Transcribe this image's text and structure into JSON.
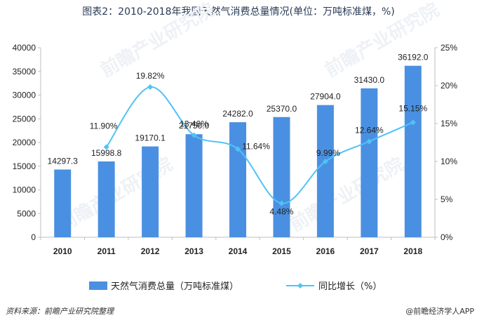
{
  "title": "图表2：2010-2018年我国天然气消费总量情况(单位：万吨标准煤，%)",
  "watermark": "前瞻产业研究院",
  "source": "资料来源：前瞻产业研究院整理",
  "brand": "@前瞻经济学人APP",
  "colors": {
    "bar": "#4a90e2",
    "line": "#4fc3f7",
    "axis": "#bfbfbf"
  },
  "chart_data": {
    "type": "bar",
    "categories": [
      "2010",
      "2011",
      "2012",
      "2013",
      "2014",
      "2015",
      "2016",
      "2017",
      "2018"
    ],
    "series": [
      {
        "name": "天然气消费总量（万吨标准煤）",
        "type": "bar",
        "axis": "left",
        "values": [
          14297.3,
          15998.8,
          19170.1,
          21750.0,
          24282.0,
          25370.0,
          27904.0,
          31430.0,
          36192.0
        ],
        "labels": [
          "14297.3",
          "15998.8",
          "19170.1",
          "21750.0",
          "24282.0",
          "25370.0",
          "27904.0",
          "31430.0",
          "36192.0"
        ]
      },
      {
        "name": "同比增长（%）",
        "type": "line",
        "axis": "right",
        "values": [
          null,
          11.9,
          19.82,
          13.46,
          11.64,
          4.48,
          9.99,
          12.64,
          15.15
        ],
        "labels": [
          "",
          "11.90%",
          "19.82%",
          "13.46%",
          "11.64%",
          "4.48%",
          "9.99%",
          "12.64%",
          "15.15%"
        ]
      }
    ],
    "ylim_left": [
      0,
      40000
    ],
    "yticks_left": [
      "0",
      "5000",
      "10000",
      "15000",
      "20000",
      "25000",
      "30000",
      "35000",
      "40000"
    ],
    "ylim_right": [
      0,
      25
    ],
    "yticks_right": [
      "0%",
      "5%",
      "10%",
      "15%",
      "20%",
      "25%"
    ],
    "legend_position": "bottom",
    "grid": false
  }
}
